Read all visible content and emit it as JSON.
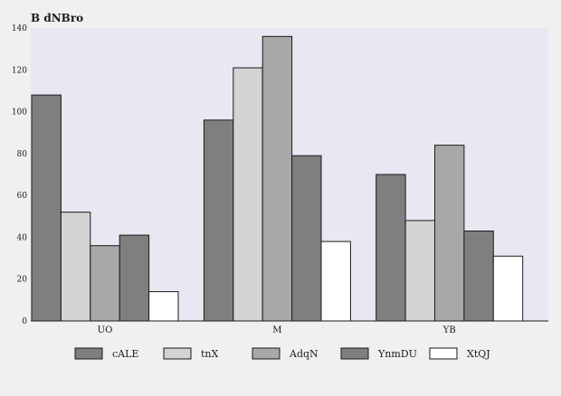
{
  "chart_data": {
    "type": "bar",
    "title": "",
    "xlabel": "",
    "ylabel": "B dNBro",
    "ylim": [
      0,
      140
    ],
    "yticks": [
      0,
      20,
      40,
      60,
      80,
      100,
      120,
      140
    ],
    "grid": false,
    "legend_position": "bottom",
    "categories": [
      "UO",
      "M",
      "YB"
    ],
    "series": [
      {
        "name": "cALE",
        "color": "#7f7f7f",
        "values": [
          108,
          96,
          70
        ]
      },
      {
        "name": "tnX",
        "color": "#d3d3d3",
        "values": [
          52,
          121,
          48
        ]
      },
      {
        "name": "AdqN",
        "color": "#a8a8a8",
        "values": [
          36,
          136,
          84
        ]
      },
      {
        "name": "YnmDU",
        "color": "#7f7f7f",
        "values": [
          41,
          79,
          43
        ]
      },
      {
        "name": "XtQJ",
        "color": "#ffffff",
        "values": [
          14,
          38,
          31
        ]
      }
    ],
    "colors": {
      "background": "#f0f0f0",
      "plot_background": "#e8e8f2",
      "bar_stroke": "#1a1a1a"
    }
  }
}
